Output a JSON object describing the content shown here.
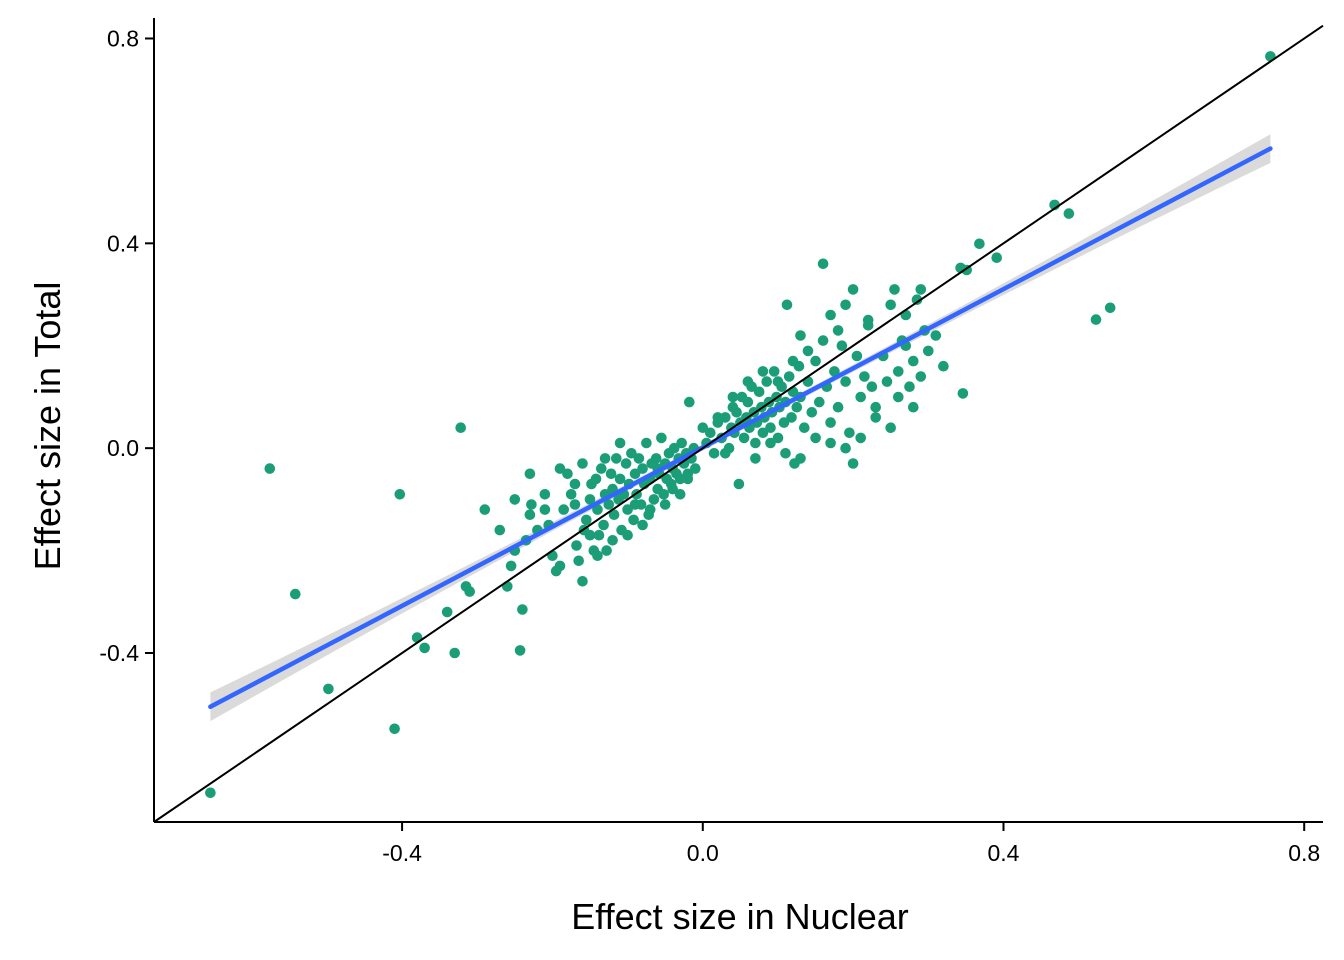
{
  "chart_data": {
    "type": "scatter",
    "title": "",
    "xlabel": "Effect size in Nuclear",
    "ylabel": "Effect size in Total",
    "xlim": [
      -0.73,
      0.825
    ],
    "ylim": [
      -0.73,
      0.84
    ],
    "x_ticks": [
      -0.4,
      0.0,
      0.4,
      0.8
    ],
    "x_tick_labels": [
      "-0.4",
      "0.0",
      "0.4",
      "0.8"
    ],
    "y_ticks": [
      -0.4,
      0.0,
      0.4,
      0.8
    ],
    "y_tick_labels": [
      "-0.4",
      "0.0",
      "0.4",
      "0.8"
    ],
    "grid": false,
    "legend": "none",
    "point_color": "#1b9e77",
    "fit_line_color": "#3366ff",
    "band_color": "#d3d3d3",
    "identity_line_color": "#000000",
    "identity_line": {
      "slope": 1,
      "intercept": 0
    },
    "fit_line": {
      "x_start": -0.655,
      "x_end": 0.755,
      "y_start": -0.505,
      "y_end": 0.585
    },
    "confidence_band_halfwidth": {
      "at_ends": 0.028,
      "at_center": 0.006
    },
    "points": [
      [
        0.755,
        0.765
      ],
      [
        0.468,
        0.475
      ],
      [
        0.487,
        0.458
      ],
      [
        0.391,
        0.372
      ],
      [
        0.368,
        0.399
      ],
      [
        0.523,
        0.251
      ],
      [
        0.542,
        0.274
      ],
      [
        0.343,
        0.352
      ],
      [
        0.351,
        0.348
      ],
      [
        0.346,
        0.107
      ],
      [
        -0.655,
        -0.673
      ],
      [
        -0.41,
        -0.548
      ],
      [
        -0.576,
        -0.04
      ],
      [
        -0.542,
        -0.285
      ],
      [
        -0.498,
        -0.47
      ],
      [
        -0.403,
        -0.09
      ],
      [
        -0.322,
        0.04
      ],
      [
        -0.38,
        -0.37
      ],
      [
        -0.37,
        -0.39
      ],
      [
        -0.34,
        -0.32
      ],
      [
        -0.33,
        -0.4
      ],
      [
        -0.315,
        -0.27
      ],
      [
        -0.31,
        -0.28
      ],
      [
        -0.29,
        -0.12
      ],
      [
        -0.27,
        -0.16
      ],
      [
        -0.26,
        -0.27
      ],
      [
        -0.255,
        -0.23
      ],
      [
        -0.25,
        -0.2
      ],
      [
        -0.243,
        -0.395
      ],
      [
        -0.24,
        -0.315
      ],
      [
        -0.235,
        -0.18
      ],
      [
        -0.23,
        -0.13
      ],
      [
        -0.228,
        -0.11
      ],
      [
        -0.22,
        -0.16
      ],
      [
        -0.21,
        -0.09
      ],
      [
        -0.205,
        -0.15
      ],
      [
        -0.2,
        -0.21
      ],
      [
        -0.195,
        -0.24
      ],
      [
        -0.19,
        -0.23
      ],
      [
        -0.185,
        -0.12
      ],
      [
        -0.18,
        -0.05
      ],
      [
        -0.175,
        -0.09
      ],
      [
        -0.17,
        -0.11
      ],
      [
        -0.168,
        -0.19
      ],
      [
        -0.165,
        -0.22
      ],
      [
        -0.16,
        -0.26
      ],
      [
        -0.158,
        -0.16
      ],
      [
        -0.155,
        -0.14
      ],
      [
        -0.15,
        -0.1
      ],
      [
        -0.148,
        -0.07
      ],
      [
        -0.145,
        -0.2
      ],
      [
        -0.142,
        -0.06
      ],
      [
        -0.14,
        -0.12
      ],
      [
        -0.138,
        -0.17
      ],
      [
        -0.135,
        -0.04
      ],
      [
        -0.132,
        -0.15
      ],
      [
        -0.13,
        -0.09
      ],
      [
        -0.128,
        -0.2
      ],
      [
        -0.125,
        -0.11
      ],
      [
        -0.122,
        -0.05
      ],
      [
        -0.12,
        -0.08
      ],
      [
        -0.118,
        -0.13
      ],
      [
        -0.115,
        -0.02
      ],
      [
        -0.112,
        -0.1
      ],
      [
        -0.11,
        -0.06
      ],
      [
        -0.108,
        -0.16
      ],
      [
        -0.105,
        -0.09
      ],
      [
        -0.102,
        -0.03
      ],
      [
        -0.1,
        -0.12
      ],
      [
        -0.098,
        -0.07
      ],
      [
        -0.095,
        -0.01
      ],
      [
        -0.092,
        -0.14
      ],
      [
        -0.09,
        -0.05
      ],
      [
        -0.088,
        -0.09
      ],
      [
        -0.085,
        -0.02
      ],
      [
        -0.082,
        -0.11
      ],
      [
        -0.08,
        -0.04
      ],
      [
        -0.078,
        -0.07
      ],
      [
        -0.075,
        0.01
      ],
      [
        -0.072,
        -0.13
      ],
      [
        -0.07,
        -0.06
      ],
      [
        -0.068,
        -0.03
      ],
      [
        -0.065,
        -0.1
      ],
      [
        -0.062,
        -0.02
      ],
      [
        -0.06,
        -0.08
      ],
      [
        -0.058,
        -0.05
      ],
      [
        -0.055,
        0.02
      ],
      [
        -0.052,
        -0.09
      ],
      [
        -0.05,
        -0.03
      ],
      [
        -0.048,
        -0.06
      ],
      [
        -0.045,
        -0.01
      ],
      [
        -0.042,
        -0.07
      ],
      [
        -0.04,
        -0.04
      ],
      [
        -0.038,
        0.0
      ],
      [
        -0.035,
        -0.05
      ],
      [
        -0.032,
        -0.02
      ],
      [
        -0.03,
        -0.06
      ],
      [
        -0.028,
        0.01
      ],
      [
        -0.025,
        -0.03
      ],
      [
        -0.022,
        -0.01
      ],
      [
        -0.02,
        -0.05
      ],
      [
        -0.018,
        0.09
      ],
      [
        -0.015,
        -0.02
      ],
      [
        -0.012,
        0.0
      ],
      [
        -0.01,
        -0.04
      ],
      [
        -0.16,
        -0.03
      ],
      [
        -0.15,
        -0.17
      ],
      [
        -0.14,
        -0.21
      ],
      [
        -0.12,
        -0.18
      ],
      [
        -0.1,
        -0.17
      ],
      [
        -0.09,
        -0.11
      ],
      [
        -0.08,
        -0.15
      ],
      [
        -0.07,
        -0.12
      ],
      [
        -0.06,
        -0.04
      ],
      [
        -0.05,
        -0.11
      ],
      [
        -0.04,
        -0.08
      ],
      [
        -0.03,
        -0.09
      ],
      [
        -0.02,
        -0.06
      ],
      [
        -0.11,
        0.01
      ],
      [
        -0.13,
        -0.02
      ],
      [
        -0.17,
        -0.07
      ],
      [
        -0.19,
        -0.04
      ],
      [
        -0.21,
        -0.12
      ],
      [
        -0.23,
        -0.05
      ],
      [
        -0.25,
        -0.1
      ],
      [
        0.005,
        0.01
      ],
      [
        0.01,
        0.03
      ],
      [
        0.015,
        -0.01
      ],
      [
        0.02,
        0.05
      ],
      [
        0.025,
        0.02
      ],
      [
        0.03,
        0.06
      ],
      [
        0.035,
        0.0
      ],
      [
        0.038,
        0.04
      ],
      [
        0.04,
        0.08
      ],
      [
        0.042,
        0.03
      ],
      [
        0.045,
        0.07
      ],
      [
        0.048,
        -0.07
      ],
      [
        0.05,
        0.05
      ],
      [
        0.052,
        0.1
      ],
      [
        0.055,
        0.02
      ],
      [
        0.058,
        0.06
      ],
      [
        0.06,
        0.09
      ],
      [
        0.062,
        0.04
      ],
      [
        0.065,
        0.12
      ],
      [
        0.068,
        0.07
      ],
      [
        0.07,
        0.01
      ],
      [
        0.072,
        0.05
      ],
      [
        0.075,
        0.11
      ],
      [
        0.078,
        0.08
      ],
      [
        0.08,
        0.03
      ],
      [
        0.082,
        0.06
      ],
      [
        0.085,
        0.13
      ],
      [
        0.088,
        0.09
      ],
      [
        0.09,
        0.04
      ],
      [
        0.092,
        0.07
      ],
      [
        0.095,
        0.15
      ],
      [
        0.098,
        0.1
      ],
      [
        0.1,
        0.02
      ],
      [
        0.102,
        0.08
      ],
      [
        0.105,
        0.12
      ],
      [
        0.108,
        0.05
      ],
      [
        0.11,
        0.09
      ],
      [
        0.112,
        0.28
      ],
      [
        0.115,
        0.14
      ],
      [
        0.118,
        0.06
      ],
      [
        0.12,
        0.11
      ],
      [
        0.122,
        -0.03
      ],
      [
        0.125,
        0.08
      ],
      [
        0.128,
        0.16
      ],
      [
        0.13,
        0.1
      ],
      [
        0.135,
        0.04
      ],
      [
        0.14,
        0.13
      ],
      [
        0.145,
        0.07
      ],
      [
        0.15,
        0.17
      ],
      [
        0.155,
        0.09
      ],
      [
        0.16,
        0.36
      ],
      [
        0.165,
        0.12
      ],
      [
        0.17,
        0.05
      ],
      [
        0.175,
        0.15
      ],
      [
        0.18,
        0.08
      ],
      [
        0.185,
        0.2
      ],
      [
        0.19,
        0.13
      ],
      [
        0.195,
        0.03
      ],
      [
        0.2,
        -0.03
      ],
      [
        0.205,
        0.18
      ],
      [
        0.21,
        0.1
      ],
      [
        0.215,
        0.14
      ],
      [
        0.22,
        0.24
      ],
      [
        0.225,
        0.12
      ],
      [
        0.23,
        0.08
      ],
      [
        0.24,
        0.18
      ],
      [
        0.245,
        0.13
      ],
      [
        0.25,
        0.04
      ],
      [
        0.255,
        0.31
      ],
      [
        0.26,
        0.15
      ],
      [
        0.265,
        0.21
      ],
      [
        0.27,
        0.2
      ],
      [
        0.275,
        0.12
      ],
      [
        0.28,
        0.17
      ],
      [
        0.285,
        0.29
      ],
      [
        0.29,
        0.14
      ],
      [
        0.295,
        0.23
      ],
      [
        0.3,
        0.19
      ],
      [
        0.31,
        0.22
      ],
      [
        0.32,
        0.16
      ],
      [
        0.2,
        0.31
      ],
      [
        0.22,
        0.25
      ],
      [
        0.25,
        0.28
      ],
      [
        0.27,
        0.26
      ],
      [
        0.29,
        0.31
      ],
      [
        0.06,
        0.13
      ],
      [
        0.08,
        0.15
      ],
      [
        0.1,
        0.13
      ],
      [
        0.12,
        0.17
      ],
      [
        0.14,
        0.19
      ],
      [
        0.16,
        0.21
      ],
      [
        0.18,
        0.23
      ],
      [
        0.19,
        0.28
      ],
      [
        0.17,
        0.26
      ],
      [
        0.13,
        0.22
      ],
      [
        0.04,
        0.1
      ],
      [
        0.02,
        0.06
      ],
      [
        0.0,
        0.04
      ],
      [
        0.03,
        -0.01
      ],
      [
        0.07,
        -0.02
      ],
      [
        0.09,
        0.01
      ],
      [
        0.11,
        -0.01
      ],
      [
        0.13,
        -0.02
      ],
      [
        0.15,
        0.02
      ],
      [
        0.17,
        0.01
      ],
      [
        0.19,
        0.0
      ],
      [
        0.21,
        0.02
      ],
      [
        0.23,
        0.06
      ],
      [
        0.26,
        0.1
      ],
      [
        0.28,
        0.08
      ]
    ]
  }
}
